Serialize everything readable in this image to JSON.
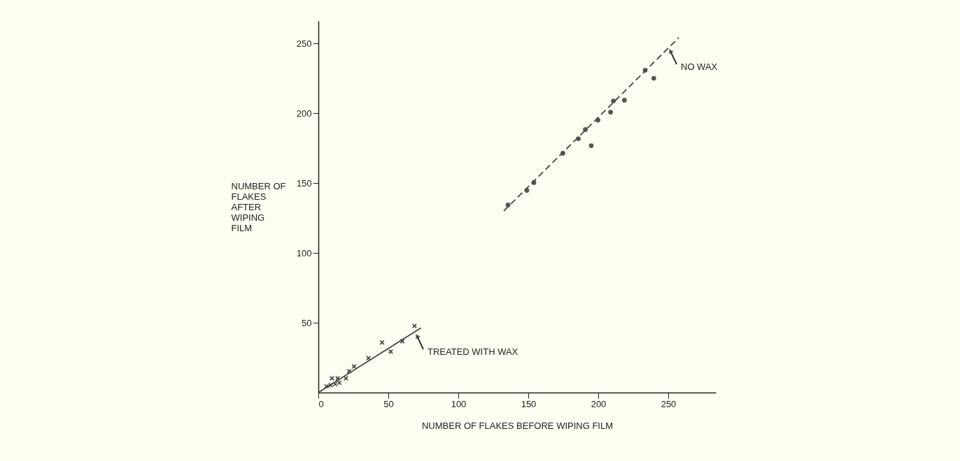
{
  "chart_data": {
    "type": "scatter",
    "xlabel": "NUMBER OF FLAKES BEFORE WIPING FILM",
    "ylabel": "NUMBER OF FLAKES AFTER WIPING FILM",
    "xlim": [
      0,
      284
    ],
    "ylim": [
      0,
      266
    ],
    "xticks": [
      0,
      50,
      100,
      150,
      200,
      250
    ],
    "yticks": [
      50,
      100,
      150,
      200,
      250
    ],
    "grid": false,
    "series": [
      {
        "type": "scatter",
        "marker": "cross",
        "color": "#444444",
        "x": [
          9.7,
          13.8,
          5.8,
          8.8,
          12,
          15,
          19.7,
          22,
          25.5,
          35.8,
          45.5,
          51.7,
          60,
          68.7
        ],
        "values": [
          10.2,
          10.2,
          4.5,
          5.3,
          6,
          7,
          10.2,
          15.3,
          18.7,
          24.7,
          35.8,
          29.3,
          36.7,
          47.7
        ]
      },
      {
        "type": "line",
        "line_style": "solid",
        "color": "#444444",
        "x": [
          0,
          73.3
        ],
        "values": [
          0,
          46.3
        ]
      },
      {
        "type": "scatter",
        "marker": "circle",
        "color": "#555555",
        "x": [
          135.5,
          149,
          154,
          174.7,
          185.8,
          190.8,
          195,
          199.8,
          208.8,
          210.8,
          218.7,
          233.5,
          239.7
        ],
        "values": [
          134.3,
          144.7,
          150.3,
          171.3,
          181.7,
          188.3,
          176.7,
          195,
          200.7,
          208.7,
          209.3,
          230.7,
          225
        ]
      },
      {
        "type": "line",
        "line_style": "dashed",
        "color": "#444444",
        "x": [
          132.5,
          257.5
        ],
        "values": [
          130,
          254
        ]
      }
    ],
    "annotations": [
      {
        "text": "NO WAX",
        "x": 250,
        "y": 247
      },
      {
        "text": "TREATED WITH WAX",
        "x": 69,
        "y": 43
      }
    ]
  }
}
